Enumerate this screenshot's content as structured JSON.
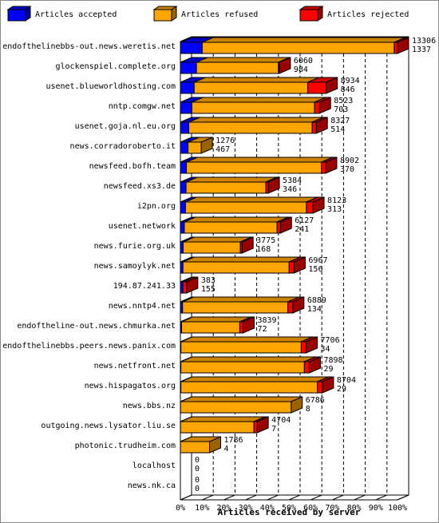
{
  "chart_data": {
    "type": "stacked-bar-3d",
    "x_label": "Articles received by server",
    "categories": [
      "endofthelinebbs-out.news.weretis.net",
      "glockenspiel.complete.org",
      "usenet.blueworldhosting.com",
      "nntp.comgw.net",
      "usenet.goja.nl.eu.org",
      "news.corradoroberto.it",
      "newsfeed.bofh.team",
      "newsfeed.xs3.de",
      "i2pn.org",
      "usenet.network",
      "news.furie.org.uk",
      "news.samoylyk.net",
      "194.87.241.33",
      "news.nntp4.net",
      "endoftheline-out.news.chmurka.net",
      "endofthelinebbs.peers.news.panix.com",
      "news.netfront.net",
      "news.hispagatos.org",
      "news.bbs.nz",
      "outgoing.news.lysator.liu.se",
      "photonic.trudheim.com",
      "localhost",
      "news.nk.ca"
    ],
    "totals": [
      13306,
      6060,
      8934,
      8523,
      8327,
      1276,
      8902,
      5384,
      8123,
      6127,
      3775,
      6967,
      383,
      6889,
      3839,
      7706,
      7898,
      8704,
      6786,
      4704,
      1786,
      0,
      0
    ],
    "series": [
      {
        "name": "Articles accepted",
        "color": "#0000ff",
        "values": [
          1337,
          984,
          846,
          703,
          514,
          467,
          370,
          346,
          313,
          241,
          168,
          156,
          155,
          134,
          72,
          34,
          29,
          29,
          8,
          7,
          4,
          0,
          0
        ]
      },
      {
        "name": "Articles refused",
        "color": "#ffa500",
        "values": [
          11769,
          5026,
          6963,
          7520,
          7563,
          809,
          8282,
          4888,
          7410,
          5686,
          3507,
          6511,
          0,
          6455,
          3567,
          7372,
          7569,
          8375,
          6778,
          4497,
          1782,
          0,
          0
        ]
      },
      {
        "name": "Articles rejected",
        "color": "#ff0000",
        "values": [
          200,
          50,
          1125,
          300,
          250,
          0,
          250,
          150,
          400,
          200,
          100,
          300,
          228,
          300,
          200,
          300,
          300,
          300,
          0,
          200,
          0,
          0,
          0
        ]
      }
    ],
    "xlim": [
      0,
      13306
    ],
    "xticks": [
      {
        "value": 0,
        "label": "0%"
      },
      {
        "value": 1330.6,
        "label": "10%"
      },
      {
        "value": 2661.2,
        "label": "20%"
      },
      {
        "value": 3991.8,
        "label": "30%"
      },
      {
        "value": 5322.4,
        "label": "40%"
      },
      {
        "value": 6653,
        "label": "50%"
      },
      {
        "value": 7983.6,
        "label": "60%"
      },
      {
        "value": 9314.2,
        "label": "70%"
      },
      {
        "value": 10644.8,
        "label": "80%"
      },
      {
        "value": 11975.4,
        "label": "90%"
      },
      {
        "value": 13306,
        "label": "100%"
      }
    ],
    "grid": true
  }
}
